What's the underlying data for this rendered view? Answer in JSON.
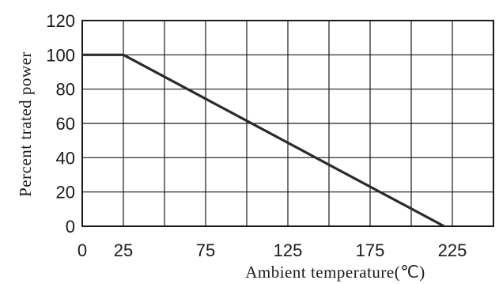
{
  "chart_data": {
    "type": "line",
    "title": "",
    "xlabel": "Ambient  temperature(℃)",
    "ylabel": "Percent trated power",
    "x_ticks": [
      0,
      25,
      75,
      125,
      175,
      225
    ],
    "x_tick_labels": [
      "0",
      "25",
      "75",
      "125",
      "175",
      "225"
    ],
    "y_ticks": [
      0,
      20,
      40,
      60,
      80,
      100,
      120
    ],
    "y_tick_labels": [
      "0",
      "20",
      "40",
      "60",
      "80",
      "100",
      "120"
    ],
    "x_grid": [
      0,
      25,
      50,
      75,
      100,
      125,
      150,
      175,
      200,
      225,
      250
    ],
    "xlim": [
      0,
      250
    ],
    "ylim": [
      0,
      120
    ],
    "grid": true,
    "series": [
      {
        "x": [
          0,
          25,
          220
        ],
        "y": [
          100,
          100,
          0
        ],
        "color": "#2b2b2b"
      }
    ]
  }
}
